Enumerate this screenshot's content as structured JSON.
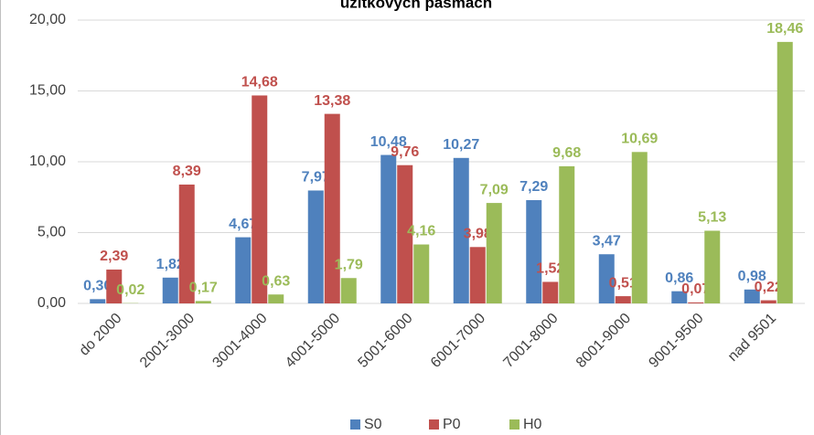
{
  "chart_data": {
    "type": "bar",
    "title": "úžitkových pásmach",
    "categories": [
      "do 2000",
      "2001-3000",
      "3001-4000",
      "4001-5000",
      "5001-6000",
      "6001-7000",
      "7001-8000",
      "8001-9000",
      "9001-9500",
      "nad 9501"
    ],
    "series": [
      {
        "name": "S0",
        "color": "#4f81bd",
        "values": [
          0.3,
          1.82,
          4.67,
          7.97,
          10.48,
          10.27,
          7.29,
          3.47,
          0.86,
          0.98
        ],
        "value_labels": [
          "0,30",
          "1,82",
          "4,67",
          "7,97",
          "10,48",
          "10,27",
          "7,29",
          "3,47",
          "0,86",
          "0,98"
        ]
      },
      {
        "name": "P0",
        "color": "#c0504d",
        "values": [
          2.39,
          8.39,
          14.68,
          13.38,
          9.76,
          3.98,
          1.52,
          0.51,
          0.07,
          0.22
        ],
        "value_labels": [
          "2,39",
          "8,39",
          "14,68",
          "13,38",
          "9,76",
          "3,98",
          "1,52",
          "0,51",
          "0,07",
          "0,22"
        ]
      },
      {
        "name": "H0",
        "color": "#9bbb59",
        "values": [
          0.02,
          0.17,
          0.63,
          1.79,
          4.16,
          7.09,
          9.68,
          10.69,
          5.13,
          18.46
        ],
        "value_labels": [
          "0,02",
          "0,17",
          "0,63",
          "1,79",
          "4,16",
          "7,09",
          "9,68",
          "10,69",
          "5,13",
          "18,46"
        ]
      }
    ],
    "ylim": [
      0,
      20
    ],
    "yticks": [
      {
        "value": 0,
        "label": "0,00"
      },
      {
        "value": 5,
        "label": "5,00"
      },
      {
        "value": 10,
        "label": "10,00"
      },
      {
        "value": 15,
        "label": "15,00"
      },
      {
        "value": 20,
        "label": "20,00"
      }
    ],
    "grid": true,
    "legend": "bottom"
  }
}
